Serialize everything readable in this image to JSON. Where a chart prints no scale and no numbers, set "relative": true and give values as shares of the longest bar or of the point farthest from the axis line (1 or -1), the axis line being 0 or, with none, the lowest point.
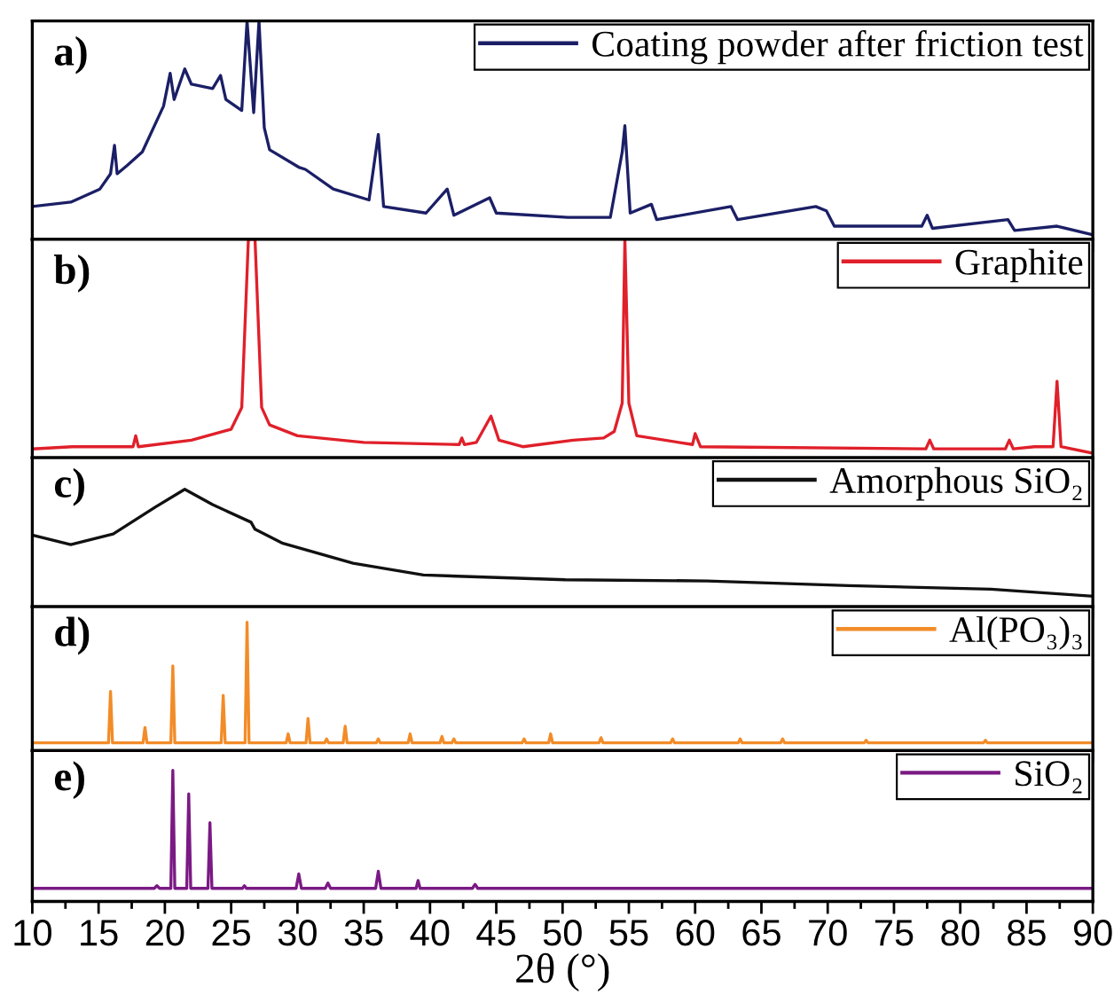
{
  "chart_data": [
    {
      "type": "line",
      "relative": true,
      "xlim": [
        10,
        90
      ],
      "xticks": [
        10,
        {
          "value": 12.5,
          "label": null
        },
        15,
        {
          "value": 17.5,
          "label": null
        },
        20,
        {
          "value": 22.5,
          "label": null
        },
        25,
        {
          "value": 27.5,
          "label": null
        },
        30,
        {
          "value": 32.5,
          "label": null
        },
        35,
        {
          "value": 37.5,
          "label": null
        },
        40,
        {
          "value": 42.5,
          "label": null
        },
        45,
        {
          "value": 47.5,
          "label": null
        },
        50,
        {
          "value": 52.5,
          "label": null
        },
        55,
        {
          "value": 57.5,
          "label": null
        },
        60,
        {
          "value": 62.5,
          "label": null
        },
        65,
        {
          "value": 67.5,
          "label": null
        },
        70,
        {
          "value": 72.5,
          "label": null
        },
        75,
        {
          "value": 77.5,
          "label": null
        },
        80,
        {
          "value": 82.5,
          "label": null
        },
        85,
        {
          "value": 87.5,
          "label": null
        },
        90
      ],
      "tick_labels": false,
      "legend": "top right",
      "annotations": [
        "a)"
      ],
      "series": [
        {
          "name": "Coating powder after friction test",
          "color": "#1b1f66",
          "x": [
            10,
            12.9,
            15.1,
            15.9,
            16.2,
            16.4,
            17.2,
            18.3,
            19.9,
            20.4,
            20.7,
            21.5,
            22.0,
            23.6,
            24.2,
            24.6,
            25.8,
            26.2,
            26.7,
            27.1,
            27.5,
            27.9,
            30.1,
            30.6,
            32.7,
            35.4,
            36.1,
            36.5,
            39.7,
            41.3,
            41.8,
            44.5,
            45.0,
            50.4,
            53.6,
            54.5,
            54.7,
            55.1,
            56.7,
            57.1,
            62.7,
            63.2,
            69.1,
            69.9,
            70.5,
            77.1,
            77.5,
            77.9,
            83.6,
            84.1,
            87.3,
            90
          ],
          "values": [
            0.15,
            0.17,
            0.23,
            0.3,
            0.43,
            0.3,
            0.34,
            0.4,
            0.61,
            0.76,
            0.64,
            0.78,
            0.71,
            0.69,
            0.75,
            0.64,
            0.59,
            1,
            0.58,
            1,
            0.51,
            0.41,
            0.33,
            0.32,
            0.23,
            0.18,
            0.48,
            0.15,
            0.12,
            0.23,
            0.11,
            0.19,
            0.12,
            0.1,
            0.1,
            0.4,
            0.52,
            0.12,
            0.16,
            0.09,
            0.15,
            0.09,
            0.15,
            0.13,
            0.06,
            0.06,
            0.11,
            0.05,
            0.09,
            0.04,
            0.06,
            0.02
          ]
        }
      ]
    },
    {
      "type": "line",
      "relative": true,
      "xlim": [
        10,
        90
      ],
      "xticks": [
        10,
        {
          "value": 12.5,
          "label": null
        },
        15,
        {
          "value": 17.5,
          "label": null
        },
        20,
        {
          "value": 22.5,
          "label": null
        },
        25,
        {
          "value": 27.5,
          "label": null
        },
        30,
        {
          "value": 32.5,
          "label": null
        },
        35,
        {
          "value": 37.5,
          "label": null
        },
        40,
        {
          "value": 42.5,
          "label": null
        },
        45,
        {
          "value": 47.5,
          "label": null
        },
        50,
        {
          "value": 52.5,
          "label": null
        },
        55,
        {
          "value": 57.5,
          "label": null
        },
        60,
        {
          "value": 62.5,
          "label": null
        },
        65,
        {
          "value": 67.5,
          "label": null
        },
        70,
        {
          "value": 72.5,
          "label": null
        },
        75,
        {
          "value": 77.5,
          "label": null
        },
        80,
        {
          "value": 82.5,
          "label": null
        },
        85,
        {
          "value": 87.5,
          "label": null
        },
        90
      ],
      "tick_labels": false,
      "legend": "top right",
      "annotations": [
        "b)"
      ],
      "series": [
        {
          "name": "Graphite",
          "color": "#e0202a",
          "x": [
            10,
            13,
            17.6,
            17.8,
            18.0,
            22,
            25,
            25.8,
            26.3,
            26.8,
            27.3,
            27.9,
            30,
            35,
            42.2,
            42.4,
            42.6,
            43.5,
            44.6,
            45.2,
            47,
            50.8,
            53.1,
            53.9,
            54.5,
            54.7,
            55.0,
            55.6,
            59.8,
            60.0,
            60.4,
            77.4,
            77.7,
            78.0,
            83.4,
            83.7,
            84.0,
            85.6,
            87.0,
            87.3,
            87.6,
            90
          ],
          "values": [
            0.04,
            0.05,
            0.05,
            0.1,
            0.05,
            0.08,
            0.13,
            0.23,
            1,
            1,
            0.23,
            0.15,
            0.1,
            0.07,
            0.06,
            0.09,
            0.06,
            0.07,
            0.19,
            0.08,
            0.05,
            0.08,
            0.09,
            0.12,
            0.25,
            1,
            0.25,
            0.1,
            0.06,
            0.11,
            0.05,
            0.04,
            0.08,
            0.04,
            0.04,
            0.08,
            0.04,
            0.05,
            0.05,
            0.35,
            0.05,
            0.02
          ]
        }
      ]
    },
    {
      "type": "line",
      "relative": true,
      "xlim": [
        10,
        90
      ],
      "xticks": [
        10,
        {
          "value": 12.5,
          "label": null
        },
        15,
        {
          "value": 17.5,
          "label": null
        },
        20,
        {
          "value": 22.5,
          "label": null
        },
        25,
        {
          "value": 27.5,
          "label": null
        },
        30,
        {
          "value": 32.5,
          "label": null
        },
        35,
        {
          "value": 37.5,
          "label": null
        },
        40,
        {
          "value": 42.5,
          "label": null
        },
        45,
        {
          "value": 47.5,
          "label": null
        },
        50,
        {
          "value": 52.5,
          "label": null
        },
        55,
        {
          "value": 57.5,
          "label": null
        },
        60,
        {
          "value": 62.5,
          "label": null
        },
        65,
        {
          "value": 67.5,
          "label": null
        },
        70,
        {
          "value": 72.5,
          "label": null
        },
        75,
        {
          "value": 77.5,
          "label": null
        },
        80,
        {
          "value": 82.5,
          "label": null
        },
        85,
        {
          "value": 87.5,
          "label": null
        },
        90
      ],
      "tick_labels": false,
      "legend": "top right",
      "annotations": [
        "c)"
      ],
      "series": [
        {
          "name": "Amorphous SiO₂",
          "color": "#111111",
          "x": [
            10,
            12.9,
            16.1,
            19.3,
            21.5,
            23.6,
            26.5,
            26.8,
            28.9,
            34.2,
            39.5,
            50.2,
            60.9,
            71.6,
            82.3,
            90
          ],
          "values": [
            0.61,
            0.53,
            0.62,
            0.85,
            1,
            0.87,
            0.72,
            0.66,
            0.54,
            0.37,
            0.27,
            0.23,
            0.22,
            0.18,
            0.15,
            0.09
          ]
        }
      ]
    },
    {
      "type": "line",
      "relative": true,
      "xlim": [
        10,
        90
      ],
      "xticks": [
        10,
        {
          "value": 12.5,
          "label": null
        },
        15,
        {
          "value": 17.5,
          "label": null
        },
        20,
        {
          "value": 22.5,
          "label": null
        },
        25,
        {
          "value": 27.5,
          "label": null
        },
        30,
        {
          "value": 32.5,
          "label": null
        },
        35,
        {
          "value": 37.5,
          "label": null
        },
        40,
        {
          "value": 42.5,
          "label": null
        },
        45,
        {
          "value": 47.5,
          "label": null
        },
        50,
        {
          "value": 52.5,
          "label": null
        },
        55,
        {
          "value": 57.5,
          "label": null
        },
        60,
        {
          "value": 62.5,
          "label": null
        },
        65,
        {
          "value": 67.5,
          "label": null
        },
        70,
        {
          "value": 72.5,
          "label": null
        },
        75,
        {
          "value": 77.5,
          "label": null
        },
        80,
        {
          "value": 82.5,
          "label": null
        },
        85,
        {
          "value": 87.5,
          "label": null
        },
        90
      ],
      "tick_labels": false,
      "legend": "top right",
      "annotations": [
        "d)"
      ],
      "series": [
        {
          "name": "Al(PO₃)₃",
          "color": "#f28c28",
          "x": [
            10,
            15.75,
            15.9,
            16.05,
            18.35,
            18.5,
            18.65,
            20.45,
            20.6,
            20.75,
            24.25,
            24.4,
            24.55,
            26.05,
            26.2,
            26.35,
            29.15,
            29.3,
            29.45,
            30.65,
            30.8,
            30.95,
            32.05,
            32.2,
            32.35,
            33.45,
            33.6,
            33.75,
            35.95,
            36.1,
            36.25,
            38.35,
            38.5,
            38.65,
            40.75,
            40.9,
            41.05,
            41.65,
            41.8,
            41.95,
            46.95,
            47.1,
            47.25,
            48.95,
            49.1,
            49.25,
            52.75,
            52.9,
            53.05,
            58.15,
            58.3,
            58.45,
            63.25,
            63.4,
            63.55,
            66.45,
            66.6,
            66.75,
            72.75,
            72.9,
            73.05,
            81.75,
            81.9,
            82.05,
            90
          ],
          "values": [
            0.06,
            0.06,
            0.46,
            0.06,
            0.06,
            0.18,
            0.06,
            0.06,
            0.66,
            0.06,
            0.06,
            0.43,
            0.06,
            0.06,
            1,
            0.06,
            0.06,
            0.13,
            0.06,
            0.06,
            0.25,
            0.06,
            0.06,
            0.09,
            0.06,
            0.06,
            0.19,
            0.06,
            0.06,
            0.09,
            0.06,
            0.06,
            0.13,
            0.06,
            0.06,
            0.11,
            0.06,
            0.06,
            0.09,
            0.06,
            0.06,
            0.09,
            0.06,
            0.06,
            0.13,
            0.06,
            0.06,
            0.1,
            0.06,
            0.06,
            0.09,
            0.06,
            0.06,
            0.09,
            0.06,
            0.06,
            0.09,
            0.06,
            0.06,
            0.08,
            0.06,
            0.06,
            0.08,
            0.06,
            0.06
          ]
        }
      ]
    },
    {
      "type": "line",
      "relative": true,
      "xlim": [
        10,
        90
      ],
      "xticks": [
        10,
        {
          "value": 12.5,
          "label": null
        },
        15,
        {
          "value": 17.5,
          "label": null
        },
        20,
        {
          "value": 22.5,
          "label": null
        },
        25,
        {
          "value": 27.5,
          "label": null
        },
        30,
        {
          "value": 32.5,
          "label": null
        },
        35,
        {
          "value": 37.5,
          "label": null
        },
        40,
        {
          "value": 42.5,
          "label": null
        },
        45,
        {
          "value": 47.5,
          "label": null
        },
        50,
        {
          "value": 52.5,
          "label": null
        },
        55,
        {
          "value": 57.5,
          "label": null
        },
        60,
        {
          "value": 62.5,
          "label": null
        },
        65,
        {
          "value": 67.5,
          "label": null
        },
        70,
        {
          "value": 72.5,
          "label": null
        },
        75,
        {
          "value": 77.5,
          "label": null
        },
        80,
        {
          "value": 82.5,
          "label": null
        },
        85,
        {
          "value": 87.5,
          "label": null
        },
        90
      ],
      "tick_labels": "x",
      "legend": "top right",
      "xlabel": "2θ (°)",
      "annotations": [
        "e)"
      ],
      "series": [
        {
          "name": "SiO₂",
          "color": "#7b1a84",
          "x": [
            10,
            19.2,
            19.4,
            19.6,
            20.45,
            20.6,
            20.75,
            21.65,
            21.8,
            21.95,
            23.25,
            23.4,
            23.55,
            25.85,
            26.0,
            26.15,
            29.9,
            30.1,
            30.3,
            32.1,
            32.3,
            32.5,
            35.9,
            36.1,
            36.3,
            38.95,
            39.1,
            39.25,
            43.2,
            43.4,
            43.6,
            90
          ],
          "values": [
            0.1,
            0.1,
            0.12,
            0.1,
            0.1,
            1,
            0.1,
            0.1,
            0.82,
            0.1,
            0.1,
            0.6,
            0.1,
            0.1,
            0.12,
            0.1,
            0.1,
            0.21,
            0.1,
            0.1,
            0.14,
            0.1,
            0.1,
            0.23,
            0.1,
            0.1,
            0.16,
            0.1,
            0.1,
            0.13,
            0.1,
            0.1
          ]
        }
      ]
    }
  ]
}
